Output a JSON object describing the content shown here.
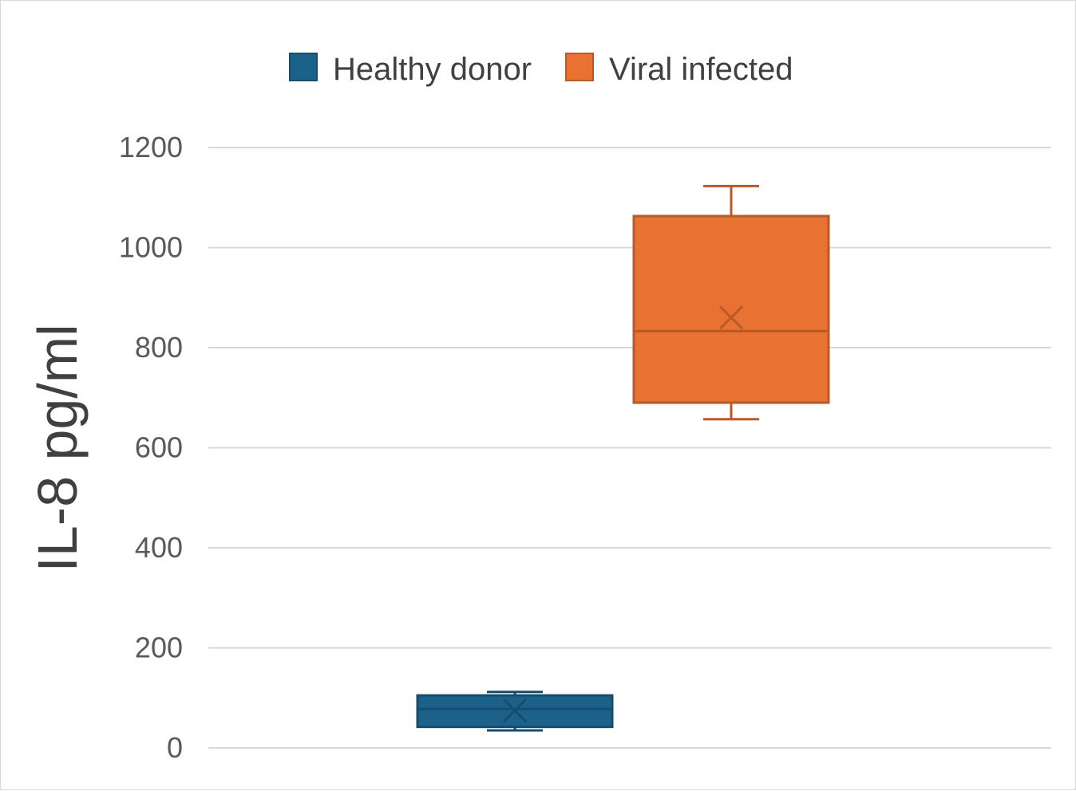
{
  "chart_data": {
    "type": "box",
    "title": "",
    "xlabel": "",
    "ylabel": "IL-8 pg/ml",
    "ylim": [
      0,
      1200
    ],
    "yticks": [
      0,
      200,
      400,
      600,
      800,
      1000,
      1200
    ],
    "ytick_labels": [
      "0",
      "200",
      "400",
      "600",
      "800",
      "1000",
      "1200"
    ],
    "grid": true,
    "legend_position": "top-center",
    "series": [
      {
        "name": "Healthy donor",
        "color": "#1b6189",
        "stroke": "#164d6e",
        "min": 35,
        "q1": 42,
        "median": 78,
        "q3": 105,
        "max": 112,
        "mean": 75
      },
      {
        "name": "Viral infected",
        "color": "#e97132",
        "stroke": "#b85a28",
        "min": 657,
        "q1": 690,
        "median": 833,
        "q3": 1063,
        "max": 1123,
        "mean": 860
      }
    ]
  }
}
